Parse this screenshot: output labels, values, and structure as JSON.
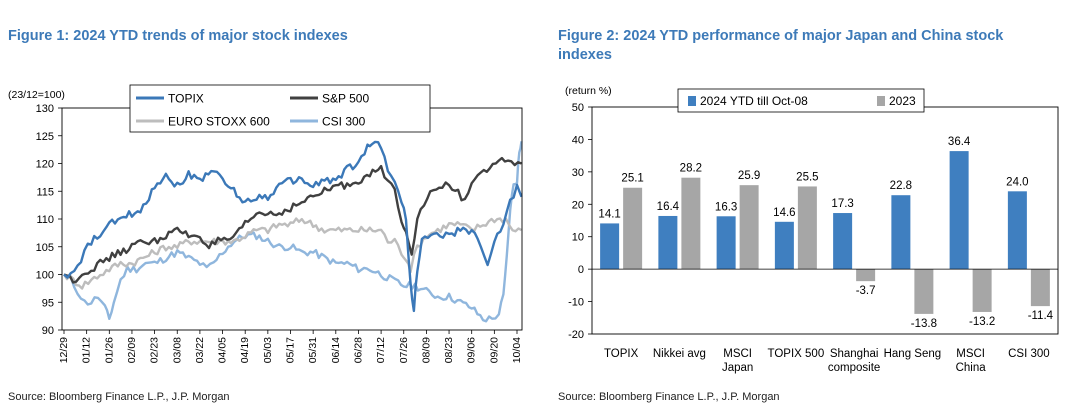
{
  "figure1": {
    "title": "Figure 1: 2024 YTD trends of major stock indexes",
    "source": "Source: Bloomberg Finance L.P., J.P. Morgan"
  },
  "figure2": {
    "title": "Figure 2: 2024 YTD performance of major Japan and China stock indexes",
    "source": "Source: Bloomberg Finance L.P., J.P. Morgan"
  },
  "colors": {
    "topix": "#3b78b8",
    "sp500": "#404040",
    "eurostoxx": "#bdbdbd",
    "csi300": "#8fb6dd",
    "bar_2024": "#3f7fc0",
    "bar_2023": "#a6a6a6",
    "title": "#3d7ab8"
  },
  "chart_data": [
    {
      "type": "line",
      "title": "Figure 1: 2024 YTD trends of major stock indexes",
      "ylabel": "(23/12=100)",
      "ylim": [
        90,
        130
      ],
      "yticks": [
        90,
        95,
        100,
        105,
        110,
        115,
        120,
        125,
        130
      ],
      "xticks": [
        "12/29",
        "01/12",
        "01/26",
        "02/09",
        "02/23",
        "03/08",
        "03/22",
        "04/05",
        "04/19",
        "05/03",
        "05/17",
        "05/31",
        "06/14",
        "06/28",
        "07/12",
        "07/26",
        "08/09",
        "08/23",
        "09/06",
        "09/20",
        "10/04"
      ],
      "legend": [
        "TOPIX",
        "S&P 500",
        "EURO STOXX 600",
        "CSI 300"
      ],
      "series": [
        {
          "name": "TOPIX",
          "anchors": [
            [
              0,
              100
            ],
            [
              0.3,
              100
            ],
            [
              0.6,
              101
            ],
            [
              0.9,
              104
            ],
            [
              1.2,
              106
            ],
            [
              1.6,
              107
            ],
            [
              2.0,
              109
            ],
            [
              2.5,
              110
            ],
            [
              3.0,
              111
            ],
            [
              3.5,
              112
            ],
            [
              4.0,
              116
            ],
            [
              4.5,
              118
            ],
            [
              5.0,
              116
            ],
            [
              5.5,
              118
            ],
            [
              6.0,
              117
            ],
            [
              6.5,
              119
            ],
            [
              7.0,
              117
            ],
            [
              7.5,
              115
            ],
            [
              8.0,
              113
            ],
            [
              8.5,
              114
            ],
            [
              9.0,
              114
            ],
            [
              9.5,
              116
            ],
            [
              10.0,
              117
            ],
            [
              10.5,
              117
            ],
            [
              11.0,
              116
            ],
            [
              11.5,
              117
            ],
            [
              12.0,
              117
            ],
            [
              12.5,
              119
            ],
            [
              13.0,
              120
            ],
            [
              13.4,
              123
            ],
            [
              13.6,
              124
            ],
            [
              14.0,
              123
            ],
            [
              14.3,
              119
            ],
            [
              14.6,
              117
            ],
            [
              14.9,
              113
            ],
            [
              15.1,
              110
            ],
            [
              15.3,
              98
            ],
            [
              15.45,
              94
            ],
            [
              15.6,
              101
            ],
            [
              15.8,
              106
            ],
            [
              16.2,
              107
            ],
            [
              16.6,
              107
            ],
            [
              17.0,
              107
            ],
            [
              17.5,
              108
            ],
            [
              18.0,
              108
            ],
            [
              18.4,
              105
            ],
            [
              18.7,
              102
            ],
            [
              19.0,
              106
            ],
            [
              19.4,
              109
            ],
            [
              19.7,
              113
            ],
            [
              20.0,
              116
            ],
            [
              20.2,
              114
            ]
          ]
        },
        {
          "name": "S&P 500",
          "anchors": [
            [
              0,
              100
            ],
            [
              0.4,
              99
            ],
            [
              0.8,
              100
            ],
            [
              1.2,
              101
            ],
            [
              1.6,
              102
            ],
            [
              2.0,
              103
            ],
            [
              2.5,
              104
            ],
            [
              3.0,
              105
            ],
            [
              3.5,
              106
            ],
            [
              4.0,
              106
            ],
            [
              4.5,
              107
            ],
            [
              5.0,
              108
            ],
            [
              5.5,
              107
            ],
            [
              6.0,
              107
            ],
            [
              6.4,
              105
            ],
            [
              6.8,
              106
            ],
            [
              7.2,
              106
            ],
            [
              7.6,
              107
            ],
            [
              8.0,
              109
            ],
            [
              8.5,
              111
            ],
            [
              9.0,
              111
            ],
            [
              9.5,
              111
            ],
            [
              10.0,
              112
            ],
            [
              10.5,
              113
            ],
            [
              11.0,
              114
            ],
            [
              11.5,
              115
            ],
            [
              12.0,
              116
            ],
            [
              12.5,
              116
            ],
            [
              13.0,
              117
            ],
            [
              13.5,
              118
            ],
            [
              14.0,
              119
            ],
            [
              14.3,
              117
            ],
            [
              14.6,
              115
            ],
            [
              14.9,
              110
            ],
            [
              15.1,
              108
            ],
            [
              15.35,
              104
            ],
            [
              15.6,
              110
            ],
            [
              15.9,
              113
            ],
            [
              16.3,
              115
            ],
            [
              16.7,
              116
            ],
            [
              17.0,
              116
            ],
            [
              17.4,
              115
            ],
            [
              17.7,
              113
            ],
            [
              18.0,
              117
            ],
            [
              18.4,
              118
            ],
            [
              18.8,
              119
            ],
            [
              19.2,
              120
            ],
            [
              19.6,
              121
            ],
            [
              19.9,
              120
            ],
            [
              20.2,
              120
            ]
          ]
        },
        {
          "name": "EURO STOXX 600",
          "anchors": [
            [
              0,
              100
            ],
            [
              0.4,
              99
            ],
            [
              0.8,
              98
            ],
            [
              1.2,
              99
            ],
            [
              1.6,
              100
            ],
            [
              2.0,
              101
            ],
            [
              2.5,
              102
            ],
            [
              3.0,
              102
            ],
            [
              3.5,
              103
            ],
            [
              4.0,
              104
            ],
            [
              4.5,
              105
            ],
            [
              5.0,
              105
            ],
            [
              5.5,
              106
            ],
            [
              6.0,
              106
            ],
            [
              6.5,
              106
            ],
            [
              7.0,
              106
            ],
            [
              7.5,
              106
            ],
            [
              8.0,
              107
            ],
            [
              8.5,
              108
            ],
            [
              9.0,
              108
            ],
            [
              9.5,
              109
            ],
            [
              10.0,
              109
            ],
            [
              10.5,
              110
            ],
            [
              11.0,
              109
            ],
            [
              11.5,
              108
            ],
            [
              12.0,
              108
            ],
            [
              12.5,
              108
            ],
            [
              13.0,
              108
            ],
            [
              13.5,
              108
            ],
            [
              14.0,
              108
            ],
            [
              14.3,
              106
            ],
            [
              14.6,
              106
            ],
            [
              14.9,
              104
            ],
            [
              15.1,
              103
            ],
            [
              15.3,
              101
            ],
            [
              15.6,
              105
            ],
            [
              16.0,
              107
            ],
            [
              16.5,
              108
            ],
            [
              17.0,
              109
            ],
            [
              17.5,
              109
            ],
            [
              18.0,
              108
            ],
            [
              18.5,
              109
            ],
            [
              19.0,
              110
            ],
            [
              19.5,
              110
            ],
            [
              19.8,
              108
            ],
            [
              20.2,
              108
            ]
          ]
        },
        {
          "name": "CSI 300",
          "anchors": [
            [
              0,
              100
            ],
            [
              0.3,
              99
            ],
            [
              0.6,
              97
            ],
            [
              0.9,
              95
            ],
            [
              1.2,
              95
            ],
            [
              1.5,
              96
            ],
            [
              1.8,
              94
            ],
            [
              2.0,
              92
            ],
            [
              2.2,
              95
            ],
            [
              2.5,
              99
            ],
            [
              2.8,
              101
            ],
            [
              3.2,
              101
            ],
            [
              3.6,
              102
            ],
            [
              4.0,
              102
            ],
            [
              4.5,
              103
            ],
            [
              5.0,
              104
            ],
            [
              5.5,
              103
            ],
            [
              6.0,
              102
            ],
            [
              6.3,
              101
            ],
            [
              6.6,
              102
            ],
            [
              7.0,
              104
            ],
            [
              7.5,
              106
            ],
            [
              8.0,
              107
            ],
            [
              8.5,
              107
            ],
            [
              9.0,
              106
            ],
            [
              9.5,
              105
            ],
            [
              10.0,
              105
            ],
            [
              10.5,
              104
            ],
            [
              11.0,
              104
            ],
            [
              11.5,
              103
            ],
            [
              12.0,
              102
            ],
            [
              12.5,
              102
            ],
            [
              13.0,
              101
            ],
            [
              13.5,
              101
            ],
            [
              14.0,
              100
            ],
            [
              14.5,
              99
            ],
            [
              15.0,
              98
            ],
            [
              15.5,
              98
            ],
            [
              16.0,
              97
            ],
            [
              16.5,
              96
            ],
            [
              17.0,
              96
            ],
            [
              17.5,
              95
            ],
            [
              18.0,
              94
            ],
            [
              18.5,
              92
            ],
            [
              18.9,
              92
            ],
            [
              19.2,
              93
            ],
            [
              19.4,
              96
            ],
            [
              19.55,
              103
            ],
            [
              19.7,
              112
            ],
            [
              19.85,
              116
            ],
            [
              20.0,
              117
            ],
            [
              20.1,
              122
            ],
            [
              20.2,
              124
            ]
          ]
        }
      ]
    },
    {
      "type": "bar",
      "title": "Figure 2: 2024 YTD performance of major Japan and China stock indexes",
      "ylabel": "(return %)",
      "ylim": [
        -20,
        50
      ],
      "yticks": [
        -20,
        -10,
        0,
        10,
        20,
        30,
        40,
        50
      ],
      "categories": [
        [
          "TOPIX"
        ],
        [
          "Nikkei avg"
        ],
        [
          "MSCI",
          "Japan"
        ],
        [
          "TOPIX 500"
        ],
        [
          "Shanghai",
          "composite"
        ],
        [
          "Hang Seng"
        ],
        [
          "MSCI",
          "China"
        ],
        [
          "CSI 300"
        ]
      ],
      "series": [
        {
          "name": "2024 YTD till Oct-08",
          "values": [
            14.1,
            16.4,
            16.3,
            14.6,
            17.3,
            22.8,
            36.4,
            24.0
          ],
          "labels": [
            "14.1",
            "16.4",
            "16.3",
            "14.6",
            "17.3",
            "22.8",
            "36.4",
            "24.0"
          ]
        },
        {
          "name": "2023",
          "values": [
            25.1,
            28.2,
            25.9,
            25.5,
            -3.7,
            -13.8,
            -13.2,
            -11.4
          ],
          "labels": [
            "25.1",
            "28.2",
            "25.9",
            "25.5",
            "-3.7",
            "-13.8",
            "-13.2",
            "-11.4"
          ]
        }
      ]
    }
  ]
}
